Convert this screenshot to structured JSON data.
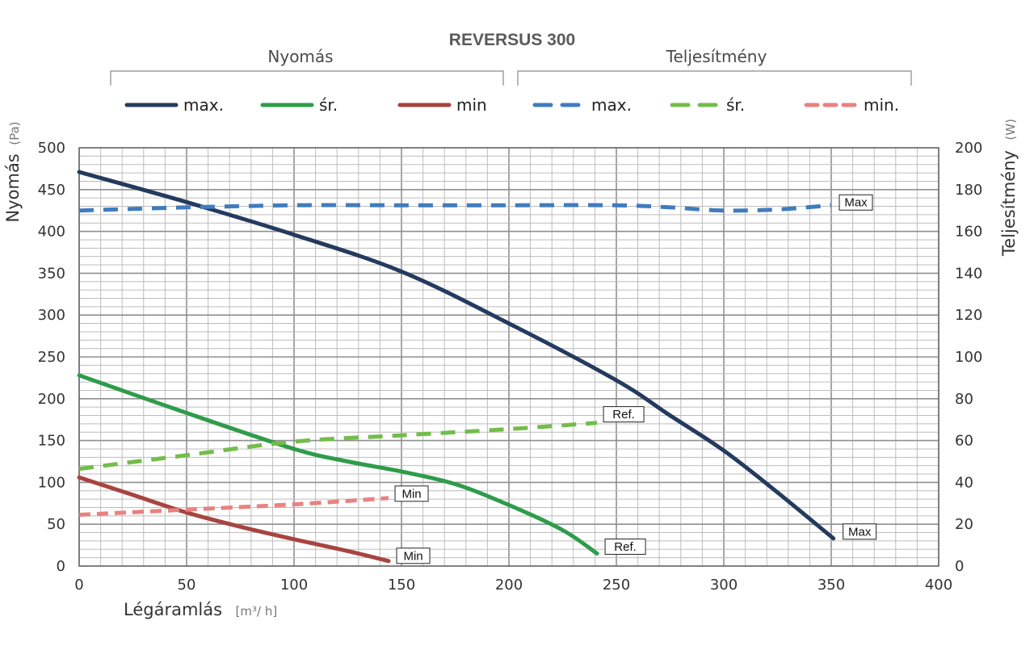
{
  "chart_data": {
    "type": "line",
    "title": "REVERSUS 300",
    "legend_groups": [
      "Nyomás",
      "Teljesítmény"
    ],
    "xlabel": "Légáramlás",
    "xunit": "[m³/ h]",
    "ylabel_left": "Nyomás",
    "ylabel_left_unit": "(Pa)",
    "ylabel_right": "Teljesítmény",
    "ylabel_right_unit": "(W)",
    "xlim": [
      0,
      400
    ],
    "ylim_left": [
      0,
      500
    ],
    "ylim_right": [
      0,
      200
    ],
    "x_ticks": [
      "0",
      "50",
      "100",
      "150",
      "200",
      "250",
      "300",
      "350",
      "400"
    ],
    "y_left_ticks": [
      "0",
      "50",
      "100",
      "150",
      "200",
      "250",
      "300",
      "350",
      "400",
      "450",
      "500"
    ],
    "y_right_ticks": [
      "0",
      "20",
      "40",
      "60",
      "80",
      "100",
      "120",
      "140",
      "160",
      "180",
      "200"
    ],
    "grid": true,
    "series": [
      {
        "name": "max.",
        "group": "Nyomás",
        "axis": "left",
        "style": "solid",
        "color": "#243a5e",
        "end_label": "Max",
        "points": [
          [
            0,
            471
          ],
          [
            50,
            435
          ],
          [
            100,
            396
          ],
          [
            150,
            352
          ],
          [
            200,
            290
          ],
          [
            250,
            222
          ],
          [
            275,
            180
          ],
          [
            300,
            138
          ],
          [
            325,
            88
          ],
          [
            351,
            33
          ]
        ]
      },
      {
        "name": "śr.",
        "group": "Nyomás",
        "axis": "left",
        "style": "solid",
        "color": "#2e9c4a",
        "end_label": "Ref.",
        "points": [
          [
            0,
            228
          ],
          [
            50,
            183
          ],
          [
            100,
            140
          ],
          [
            125,
            125
          ],
          [
            150,
            113
          ],
          [
            175,
            98
          ],
          [
            200,
            73
          ],
          [
            225,
            43
          ],
          [
            241,
            15
          ]
        ]
      },
      {
        "name": "min",
        "group": "Nyomás",
        "axis": "left",
        "style": "solid",
        "color": "#a84440",
        "end_label": "Min",
        "points": [
          [
            0,
            106
          ],
          [
            25,
            85
          ],
          [
            50,
            64
          ],
          [
            75,
            47
          ],
          [
            100,
            32
          ],
          [
            125,
            18
          ],
          [
            144,
            6
          ]
        ]
      },
      {
        "name": "max.",
        "group": "Teljesítmény",
        "axis": "right",
        "style": "dashed",
        "color": "#3f7cbf",
        "end_label": "Max",
        "points": [
          [
            0,
            170
          ],
          [
            50,
            171.5
          ],
          [
            100,
            172.5
          ],
          [
            150,
            172.5
          ],
          [
            200,
            172.5
          ],
          [
            250,
            172.5
          ],
          [
            275,
            171.5
          ],
          [
            300,
            170
          ],
          [
            325,
            170.5
          ],
          [
            350,
            172.5
          ]
        ]
      },
      {
        "name": "śr.",
        "group": "Teljesítmény",
        "axis": "right",
        "style": "dashed",
        "color": "#72bd4a",
        "end_label": "Ref.",
        "points": [
          [
            0,
            46.5
          ],
          [
            50,
            53
          ],
          [
            100,
            59.5
          ],
          [
            150,
            62.5
          ],
          [
            200,
            65.5
          ],
          [
            241,
            68.5
          ]
        ]
      },
      {
        "name": "min.",
        "group": "Teljesítmény",
        "axis": "right",
        "style": "dashed",
        "color": "#e88280",
        "end_label": "Min",
        "points": [
          [
            0,
            24.5
          ],
          [
            50,
            27
          ],
          [
            100,
            29.5
          ],
          [
            144,
            32.5
          ]
        ]
      }
    ]
  }
}
